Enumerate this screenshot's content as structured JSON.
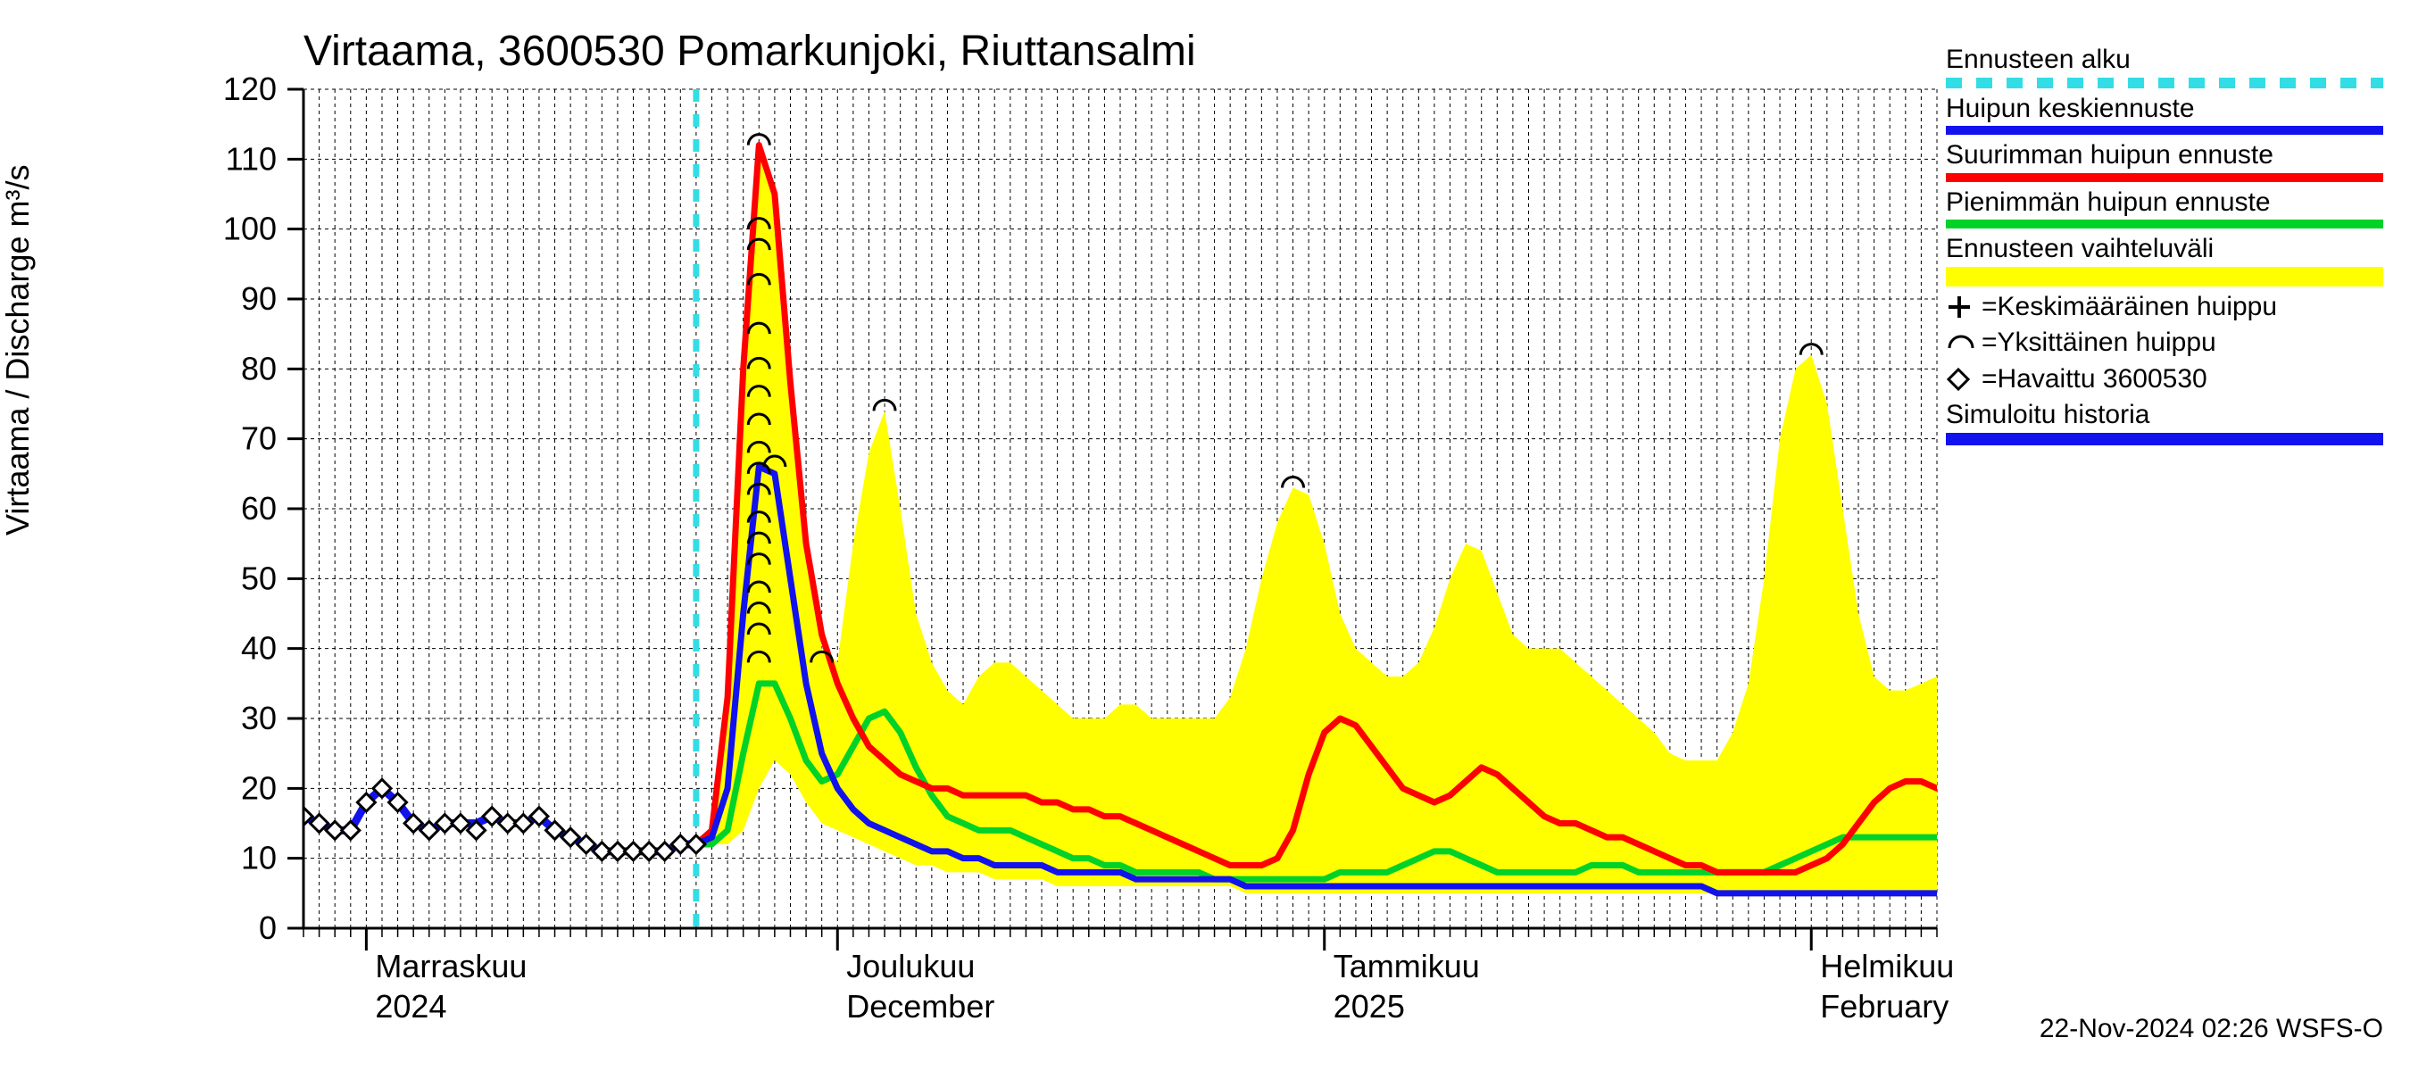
{
  "chart": {
    "type": "line+area",
    "title": "Virtaama, 3600530 Pomarkunjoki, Riuttansalmi",
    "ylabel": "Virtaama / Discharge    m³/s",
    "footer": "22-Nov-2024 02:26 WSFS-O",
    "background_color": "#ffffff",
    "grid_color": "#000000",
    "grid_dash": "4,4",
    "axis_color": "#000000",
    "title_fontsize": 48,
    "label_fontsize": 36,
    "tick_fontsize": 36,
    "plot": {
      "x_min": 0,
      "x_max": 104,
      "y_min": 0,
      "y_max": 120,
      "y_ticks": [
        0,
        10,
        20,
        30,
        40,
        50,
        60,
        70,
        80,
        90,
        100,
        110,
        120
      ],
      "x_minor_step": 1,
      "x_month_starts": [
        4,
        34,
        65,
        96
      ],
      "x_month_labels_top": [
        "Marraskuu",
        "Joulukuu",
        "Tammikuu",
        "Helmikuu"
      ],
      "x_month_labels_bottom": [
        "2024",
        "December",
        "2025",
        "February"
      ],
      "forecast_start_x": 25
    },
    "colors": {
      "forecast_start": "#33dde5",
      "mean_peak": "#1212ee",
      "max_peak": "#ff0000",
      "min_peak": "#00d228",
      "range_fill": "#ffff00",
      "observed_marker_stroke": "#000000",
      "observed_marker_fill": "#ffffff",
      "sim_history": "#1212ee",
      "arc_marker": "#000000",
      "plus_marker": "#000000"
    },
    "line_widths": {
      "mean_peak": 7,
      "max_peak": 7,
      "min_peak": 7,
      "sim_history": 9,
      "forecast_start": 7
    },
    "series": {
      "observed": {
        "x": [
          0,
          1,
          2,
          3,
          4,
          5,
          6,
          7,
          8,
          9,
          10,
          11,
          12,
          13,
          14,
          15,
          16,
          17,
          18,
          19,
          20,
          21,
          22,
          23,
          24,
          25
        ],
        "y": [
          16,
          15,
          14,
          14,
          18,
          20,
          18,
          15,
          14,
          15,
          15,
          14,
          16,
          15,
          15,
          16,
          14,
          13,
          12,
          11,
          11,
          11,
          11,
          11,
          12,
          12
        ]
      },
      "sim_history": {
        "x": [
          0,
          1,
          2,
          3,
          4,
          5,
          6,
          7,
          8,
          9,
          10,
          11,
          12,
          13,
          14,
          15,
          16,
          17,
          18,
          19,
          20,
          21,
          22,
          23,
          24,
          25
        ],
        "y": [
          16,
          15,
          14,
          14,
          18,
          20,
          18,
          15,
          14,
          15,
          15,
          15,
          16,
          15,
          15,
          16,
          14,
          13,
          12,
          11,
          11,
          11,
          11,
          11,
          12,
          12
        ]
      },
      "range_upper": {
        "x": [
          25,
          26,
          27,
          28,
          29,
          30,
          31,
          32,
          33,
          34,
          35,
          36,
          37,
          38,
          39,
          40,
          41,
          42,
          43,
          44,
          45,
          46,
          47,
          48,
          49,
          50,
          51,
          52,
          53,
          54,
          55,
          56,
          57,
          58,
          59,
          60,
          61,
          62,
          63,
          64,
          65,
          66,
          67,
          68,
          69,
          70,
          71,
          72,
          73,
          74,
          75,
          76,
          77,
          78,
          79,
          80,
          81,
          82,
          83,
          84,
          85,
          86,
          87,
          88,
          89,
          90,
          91,
          92,
          93,
          94,
          95,
          96,
          97,
          98,
          99,
          100,
          101,
          102,
          103,
          104
        ],
        "y": [
          12,
          14,
          33,
          80,
          112,
          105,
          80,
          55,
          40,
          38,
          55,
          68,
          74,
          60,
          45,
          38,
          34,
          32,
          36,
          38,
          38,
          36,
          34,
          32,
          30,
          30,
          30,
          32,
          32,
          30,
          30,
          30,
          30,
          30,
          33,
          40,
          50,
          58,
          63,
          62,
          55,
          45,
          40,
          38,
          36,
          36,
          38,
          43,
          50,
          55,
          54,
          48,
          42,
          40,
          40,
          40,
          38,
          36,
          34,
          32,
          30,
          28,
          25,
          24,
          24,
          24,
          28,
          35,
          50,
          70,
          80,
          82,
          75,
          60,
          45,
          36,
          34,
          34,
          35,
          36
        ]
      },
      "range_lower": {
        "x": [
          25,
          26,
          27,
          28,
          29,
          30,
          31,
          32,
          33,
          34,
          35,
          36,
          37,
          38,
          39,
          40,
          41,
          42,
          43,
          44,
          45,
          46,
          47,
          48,
          49,
          50,
          51,
          52,
          53,
          54,
          55,
          56,
          57,
          58,
          59,
          60,
          61,
          62,
          63,
          64,
          65,
          66,
          67,
          68,
          69,
          70,
          71,
          72,
          73,
          74,
          75,
          76,
          77,
          78,
          79,
          80,
          81,
          82,
          83,
          84,
          85,
          86,
          87,
          88,
          89,
          90,
          91,
          92,
          93,
          94,
          95,
          96,
          97,
          98,
          99,
          100,
          101,
          102,
          103,
          104
        ],
        "y": [
          12,
          12,
          12,
          14,
          20,
          24,
          22,
          18,
          15,
          14,
          13,
          12,
          11,
          10,
          9,
          9,
          8,
          8,
          8,
          7,
          7,
          7,
          7,
          6,
          6,
          6,
          6,
          6,
          6,
          6,
          6,
          6,
          6,
          6,
          6,
          5,
          5,
          5,
          5,
          5,
          5,
          5,
          5,
          5,
          5,
          5,
          5,
          5,
          5,
          5,
          5,
          5,
          5,
          5,
          5,
          5,
          5,
          5,
          5,
          5,
          5,
          5,
          5,
          5,
          5,
          5,
          5,
          5,
          5,
          5,
          5,
          5,
          5,
          5,
          5,
          5,
          5,
          5,
          5,
          5
        ]
      },
      "max_peak": {
        "x": [
          25,
          26,
          27,
          28,
          29,
          30,
          31,
          32,
          33,
          34,
          35,
          36,
          37,
          38,
          39,
          40,
          41,
          42,
          43,
          44,
          45,
          46,
          47,
          48,
          49,
          50,
          51,
          52,
          53,
          54,
          55,
          56,
          57,
          58,
          59,
          60,
          61,
          62,
          63,
          64,
          65,
          66,
          67,
          68,
          69,
          70,
          71,
          72,
          73,
          74,
          75,
          76,
          77,
          78,
          79,
          80,
          81,
          82,
          83,
          84,
          85,
          86,
          87,
          88,
          89,
          90,
          91,
          92,
          93,
          94,
          95,
          96,
          97,
          98,
          99,
          100,
          101,
          102,
          103,
          104
        ],
        "y": [
          12,
          14,
          33,
          80,
          112,
          105,
          78,
          55,
          42,
          35,
          30,
          26,
          24,
          22,
          21,
          20,
          20,
          19,
          19,
          19,
          19,
          19,
          18,
          18,
          17,
          17,
          16,
          16,
          15,
          14,
          13,
          12,
          11,
          10,
          9,
          9,
          9,
          10,
          14,
          22,
          28,
          30,
          29,
          26,
          23,
          20,
          19,
          18,
          19,
          21,
          23,
          22,
          20,
          18,
          16,
          15,
          15,
          14,
          13,
          13,
          12,
          11,
          10,
          9,
          9,
          8,
          8,
          8,
          8,
          8,
          8,
          9,
          10,
          12,
          15,
          18,
          20,
          21,
          21,
          20
        ]
      },
      "mean_peak": {
        "x": [
          25,
          26,
          27,
          28,
          29,
          30,
          31,
          32,
          33,
          34,
          35,
          36,
          37,
          38,
          39,
          40,
          41,
          42,
          43,
          44,
          45,
          46,
          47,
          48,
          49,
          50,
          51,
          52,
          53,
          54,
          55,
          56,
          57,
          58,
          59,
          60,
          61,
          62,
          63,
          64,
          65,
          66,
          67,
          68,
          69,
          70,
          71,
          72,
          73,
          74,
          75,
          76,
          77,
          78,
          79,
          80,
          81,
          82,
          83,
          84,
          85,
          86,
          87,
          88,
          89,
          90,
          91,
          92,
          93,
          94,
          95,
          96,
          97,
          98,
          99,
          100,
          101,
          102,
          103,
          104
        ],
        "y": [
          12,
          13,
          20,
          45,
          66,
          65,
          50,
          35,
          25,
          20,
          17,
          15,
          14,
          13,
          12,
          11,
          11,
          10,
          10,
          9,
          9,
          9,
          9,
          8,
          8,
          8,
          8,
          8,
          7,
          7,
          7,
          7,
          7,
          7,
          7,
          6,
          6,
          6,
          6,
          6,
          6,
          6,
          6,
          6,
          6,
          6,
          6,
          6,
          6,
          6,
          6,
          6,
          6,
          6,
          6,
          6,
          6,
          6,
          6,
          6,
          6,
          6,
          6,
          6,
          6,
          5,
          5,
          5,
          5,
          5,
          5,
          5,
          5,
          5,
          5,
          5,
          5,
          5,
          5,
          5
        ]
      },
      "min_peak": {
        "x": [
          25,
          26,
          27,
          28,
          29,
          30,
          31,
          32,
          33,
          34,
          35,
          36,
          37,
          38,
          39,
          40,
          41,
          42,
          43,
          44,
          45,
          46,
          47,
          48,
          49,
          50,
          51,
          52,
          53,
          54,
          55,
          56,
          57,
          58,
          59,
          60,
          61,
          62,
          63,
          64,
          65,
          66,
          67,
          68,
          69,
          70,
          71,
          72,
          73,
          74,
          75,
          76,
          77,
          78,
          79,
          80,
          81,
          82,
          83,
          84,
          85,
          86,
          87,
          88,
          89,
          90,
          91,
          92,
          93,
          94,
          95,
          96,
          97,
          98,
          99,
          100,
          101,
          102,
          103,
          104
        ],
        "y": [
          12,
          12,
          14,
          25,
          35,
          35,
          30,
          24,
          21,
          22,
          26,
          30,
          31,
          28,
          23,
          19,
          16,
          15,
          14,
          14,
          14,
          13,
          12,
          11,
          10,
          10,
          9,
          9,
          8,
          8,
          8,
          8,
          8,
          7,
          7,
          7,
          7,
          7,
          7,
          7,
          7,
          8,
          8,
          8,
          8,
          9,
          10,
          11,
          11,
          10,
          9,
          8,
          8,
          8,
          8,
          8,
          8,
          9,
          9,
          9,
          8,
          8,
          8,
          8,
          8,
          8,
          8,
          8,
          8,
          9,
          10,
          11,
          12,
          13,
          13,
          13,
          13,
          13,
          13,
          13
        ]
      },
      "arc_markers": {
        "points": [
          {
            "x": 29,
            "y": 112
          },
          {
            "x": 29,
            "y": 100
          },
          {
            "x": 29,
            "y": 97
          },
          {
            "x": 29,
            "y": 92
          },
          {
            "x": 29,
            "y": 85
          },
          {
            "x": 29,
            "y": 80
          },
          {
            "x": 29,
            "y": 76
          },
          {
            "x": 29,
            "y": 72
          },
          {
            "x": 29,
            "y": 68
          },
          {
            "x": 29,
            "y": 65
          },
          {
            "x": 29,
            "y": 62
          },
          {
            "x": 29,
            "y": 58
          },
          {
            "x": 29,
            "y": 55
          },
          {
            "x": 29,
            "y": 52
          },
          {
            "x": 29,
            "y": 48
          },
          {
            "x": 29,
            "y": 45
          },
          {
            "x": 29,
            "y": 42
          },
          {
            "x": 29,
            "y": 38
          },
          {
            "x": 30,
            "y": 66
          },
          {
            "x": 33,
            "y": 38
          },
          {
            "x": 37,
            "y": 74
          },
          {
            "x": 63,
            "y": 63
          },
          {
            "x": 96,
            "y": 82
          }
        ]
      }
    },
    "legend": [
      {
        "label": "Ennusteen alku",
        "type": "dashed",
        "color": "#33dde5"
      },
      {
        "label": "Huipun keskiennuste",
        "type": "line",
        "color": "#1212ee"
      },
      {
        "label": "Suurimman huipun ennuste",
        "type": "line",
        "color": "#ff0000"
      },
      {
        "label": "Pienimmän huipun ennuste",
        "type": "line",
        "color": "#00d228"
      },
      {
        "label": "Ennusteen vaihteluväli",
        "type": "fill",
        "color": "#ffff00"
      },
      {
        "label": "=Keskimääräinen huippu",
        "type": "symbol",
        "symbol": "+"
      },
      {
        "label": "=Yksittäinen huippu",
        "type": "symbol",
        "symbol": "arc"
      },
      {
        "label": "=Havaittu 3600530",
        "type": "symbol",
        "symbol": "diamond"
      },
      {
        "label": "Simuloitu historia",
        "type": "thickline",
        "color": "#1212ee"
      }
    ]
  }
}
